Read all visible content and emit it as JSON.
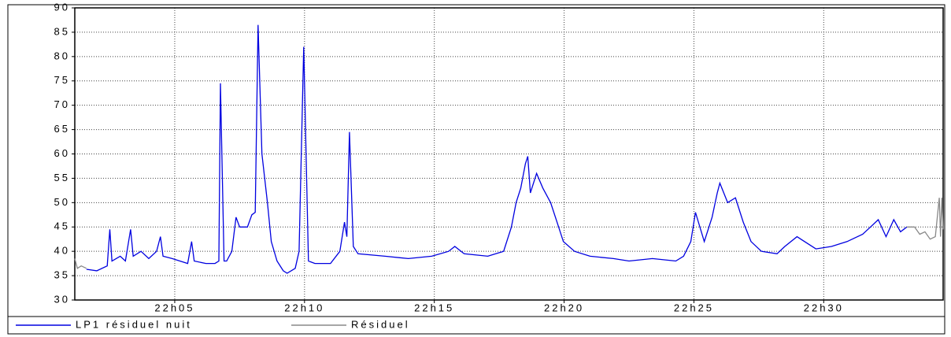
{
  "chart_data": {
    "type": "line",
    "xlim": [
      1.15,
      34.6
    ],
    "xticks": [
      {
        "value": 5,
        "label": "22h05"
      },
      {
        "value": 10,
        "label": "22h10"
      },
      {
        "value": 15,
        "label": "22h15"
      },
      {
        "value": 20,
        "label": "22h20"
      },
      {
        "value": 25,
        "label": "22h25"
      },
      {
        "value": 30,
        "label": "22h30"
      }
    ],
    "ylim": [
      30,
      90
    ],
    "yticks": [
      30,
      35,
      40,
      45,
      50,
      55,
      60,
      65,
      70,
      75,
      80,
      85,
      90
    ],
    "grid": true,
    "legend": "bottom",
    "series": [
      {
        "name": "LP1 résiduel nuit",
        "color": "#0000e0",
        "x": [
          1.6,
          2.0,
          2.4,
          2.5,
          2.58,
          2.9,
          3.1,
          3.3,
          3.4,
          3.7,
          4.0,
          4.3,
          4.45,
          4.55,
          4.9,
          5.2,
          5.5,
          5.65,
          5.75,
          6.2,
          6.55,
          6.7,
          6.76,
          6.9,
          7.0,
          7.2,
          7.36,
          7.5,
          7.8,
          7.97,
          8.1,
          8.21,
          8.36,
          8.57,
          8.72,
          8.94,
          9.18,
          9.33,
          9.64,
          9.79,
          9.97,
          10.15,
          10.4,
          11.0,
          11.36,
          11.54,
          11.63,
          11.73,
          11.88,
          12.06,
          13.1,
          14.0,
          14.9,
          15.55,
          15.79,
          16.15,
          17.06,
          17.67,
          17.97,
          18.15,
          18.33,
          18.51,
          18.6,
          18.7,
          18.94,
          19.18,
          19.48,
          19.79,
          19.97,
          20.4,
          21.0,
          21.9,
          22.5,
          23.4,
          24.3,
          24.6,
          24.88,
          25.06,
          25.4,
          25.7,
          25.9,
          26.0,
          26.3,
          26.6,
          26.9,
          27.2,
          27.6,
          28.2,
          28.5,
          28.97,
          29.7,
          30.3,
          30.9,
          31.5,
          31.8,
          32.1,
          32.4,
          32.7,
          32.96,
          33.2
        ],
        "values": [
          36.3,
          36,
          37,
          44.5,
          38,
          39,
          38,
          44.5,
          39,
          40,
          38.5,
          40,
          43,
          39,
          38.5,
          38,
          37.5,
          42,
          38,
          37.5,
          37.5,
          38,
          74.5,
          38,
          38,
          40,
          47,
          45,
          45,
          47.5,
          48,
          86.5,
          60,
          50,
          42,
          38,
          36,
          35.5,
          36.5,
          40,
          82,
          38,
          37.5,
          37.5,
          40,
          46,
          43,
          64.5,
          41,
          39.5,
          39,
          38.5,
          39,
          40,
          41,
          39.5,
          39,
          40,
          45,
          50,
          53,
          58,
          59.5,
          52,
          56,
          53,
          50,
          45,
          42,
          40,
          39,
          38.5,
          38,
          38.5,
          38,
          39,
          42,
          48,
          42,
          47,
          52,
          54,
          50,
          51,
          46,
          42,
          40,
          39.5,
          41,
          43,
          40.5,
          41,
          42,
          43.5,
          45,
          46.5,
          43,
          46.5,
          44,
          45
        ]
      },
      {
        "name": "Résiduel",
        "color": "#888888",
        "x": [
          1.15,
          1.25,
          1.4,
          1.6,
          17,
          33.2,
          33.5,
          33.7,
          33.9,
          34.1,
          34.3,
          34.45,
          34.5,
          34.55,
          34.6
        ],
        "values": [
          38.5,
          36.5,
          37,
          36.5,
          null,
          45,
          45,
          43.5,
          44,
          42.5,
          43,
          51,
          43,
          51,
          44.5
        ]
      }
    ]
  }
}
